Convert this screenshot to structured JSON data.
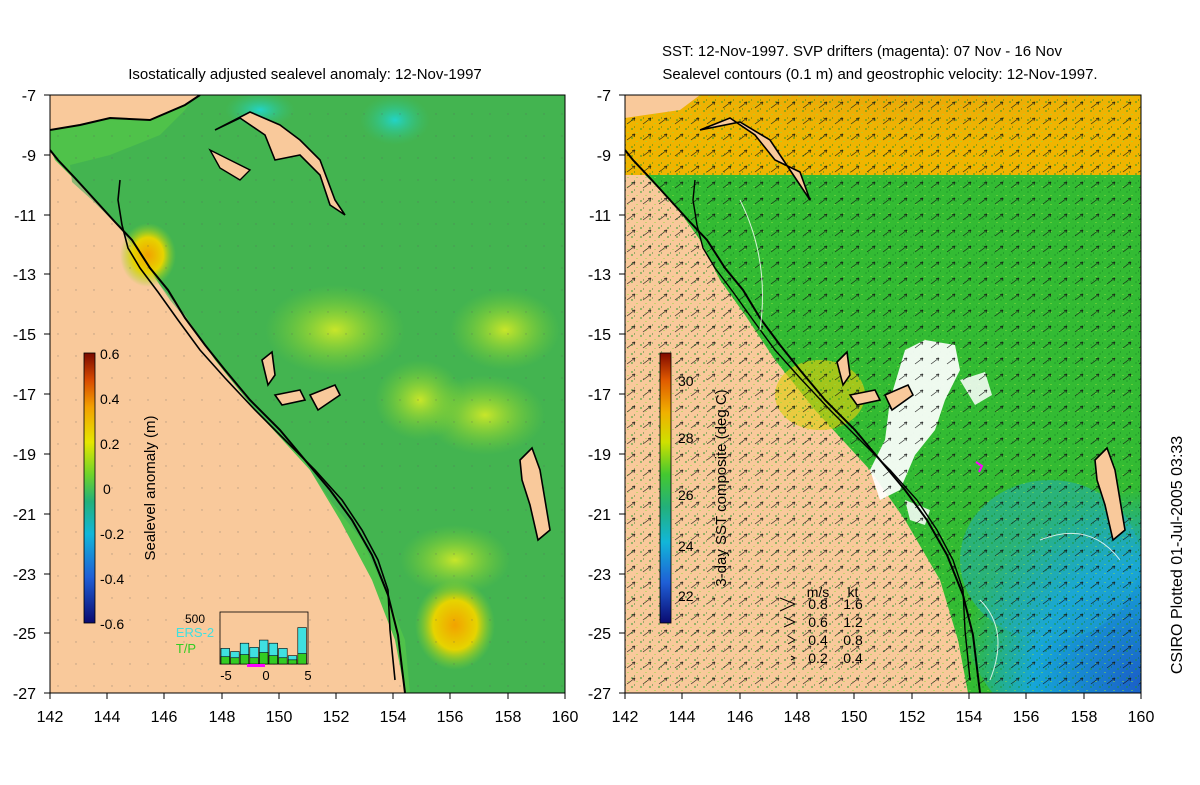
{
  "left_panel": {
    "title": "Isostatically adjusted sealevel anomaly: 12-Nov-1997",
    "x_ticks": [
      "142",
      "144",
      "146",
      "148",
      "150",
      "152",
      "154",
      "156",
      "158",
      "160"
    ],
    "y_ticks": [
      "-7",
      "-9",
      "-11",
      "-13",
      "-15",
      "-17",
      "-19",
      "-21",
      "-23",
      "-25",
      "-27"
    ],
    "colorbar": {
      "label": "Sealevel anomaly (m)",
      "ticks": [
        "0.6",
        "0.4",
        "0.2",
        "0",
        "-0.2",
        "-0.4",
        "-0.6"
      ]
    },
    "histogram": {
      "ymax_label": "500",
      "x_ticks": [
        "-5",
        "0",
        "5"
      ],
      "legend": [
        "ERS-2",
        "T/P"
      ],
      "ers2": [
        150,
        120,
        200,
        160,
        230,
        200,
        150,
        80,
        350
      ],
      "tp": [
        70,
        60,
        90,
        60,
        110,
        80,
        60,
        40,
        100
      ],
      "ymax": 500
    }
  },
  "right_panel": {
    "title_line1": "SST: 12-Nov-1997. SVP drifters (magenta): 07 Nov - 16 Nov",
    "title_line2": "Sealevel contours (0.1 m) and geostrophic velocity: 12-Nov-1997.",
    "x_ticks": [
      "142",
      "144",
      "146",
      "148",
      "150",
      "152",
      "154",
      "156",
      "158",
      "160"
    ],
    "y_ticks": [
      "-7",
      "-9",
      "-11",
      "-13",
      "-15",
      "-17",
      "-19",
      "-21",
      "-23",
      "-25",
      "-27"
    ],
    "colorbar": {
      "label": "3-day SST composite (deg C)",
      "ticks": [
        "30",
        "28",
        "26",
        "24",
        "22"
      ]
    },
    "velocity_legend": {
      "header_ms": "m/s",
      "header_kt": "kt",
      "rows": [
        {
          "ms": "0.8",
          "kt": "1.6"
        },
        {
          "ms": "0.6",
          "kt": "1.2"
        },
        {
          "ms": "0.4",
          "kt": "0.8"
        },
        {
          "ms": "0.2",
          "kt": "0.4"
        }
      ]
    }
  },
  "credit": "CSIRO Plotted 01-Jul-2005 03:33",
  "colors": {
    "land": "#f9c99b",
    "coast": "#000000",
    "sla_green": "#4fc24a",
    "sst_green": "#33bb33"
  }
}
